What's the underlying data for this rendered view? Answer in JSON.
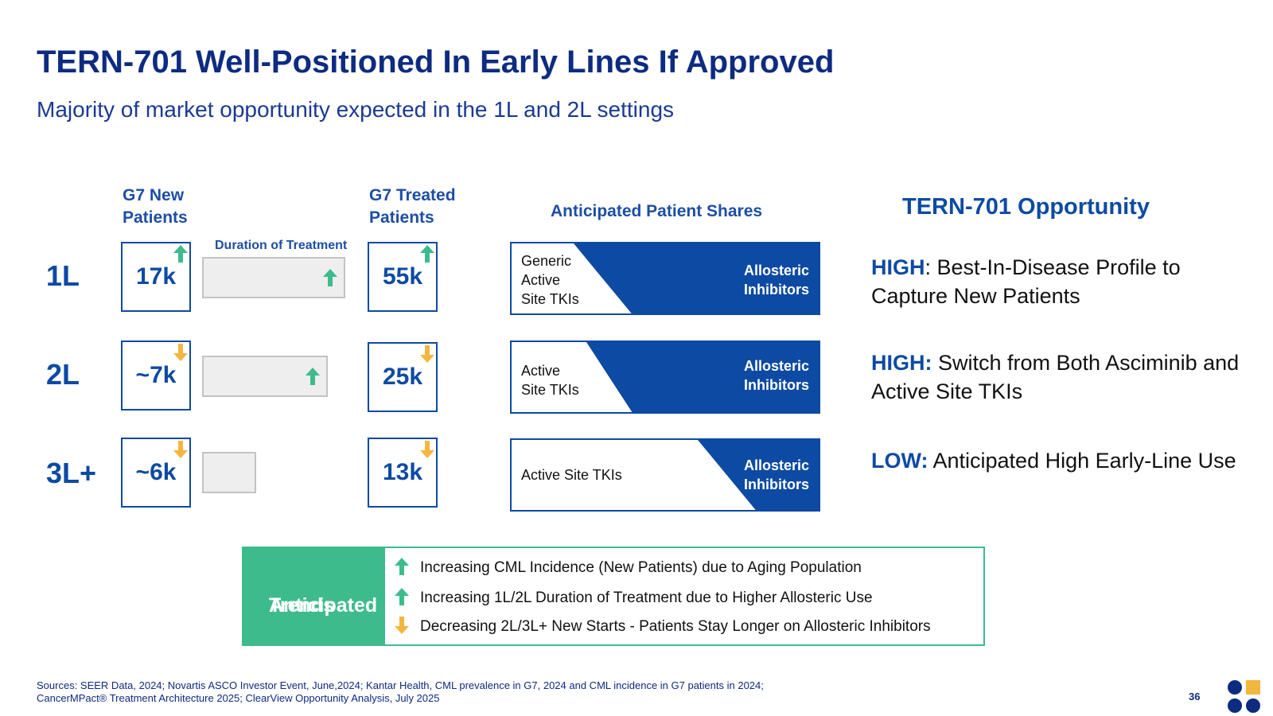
{
  "header": {
    "title": "TERN-701 Well-Positioned In Early Lines If Approved",
    "subtitle": "Majority of market opportunity expected in the 1L and 2L settings"
  },
  "columns": {
    "new_patients": [
      "G7 New",
      "Patients"
    ],
    "duration": "Duration of Treatment",
    "treated_patients": [
      "G7 Treated",
      "Patients"
    ],
    "shares": "Anticipated Patient Shares",
    "opportunity": "TERN-701 Opportunity"
  },
  "rows": [
    {
      "line": "1L",
      "new_patients": "17k",
      "new_trend": "up",
      "duration_trend": "up",
      "duration_relative": 1.0,
      "treated_patients": "55k",
      "treated_trend": "up",
      "generic_label": [
        "Generic",
        "Active",
        "Site TKIs"
      ],
      "allosteric_label": [
        "Allosteric",
        "Inhibitors"
      ],
      "opportunity_level": "HIGH",
      "opportunity_text": ": Best-In-Disease Profile to Capture New Patients"
    },
    {
      "line": "2L",
      "new_patients": "~7k",
      "new_trend": "down",
      "duration_trend": "up",
      "duration_relative": 0.88,
      "treated_patients": "25k",
      "treated_trend": "down",
      "generic_label": [
        "Active",
        "Site TKIs"
      ],
      "allosteric_label": [
        "Allosteric",
        "Inhibitors"
      ],
      "opportunity_level": "HIGH:",
      "opportunity_text": " Switch from Both Asciminib and Active Site TKIs"
    },
    {
      "line": "3L+",
      "new_patients": "~6k",
      "new_trend": "down",
      "duration_trend": "none",
      "duration_relative": 0.38,
      "treated_patients": "13k",
      "treated_trend": "down",
      "generic_label": [
        "Active Site TKIs"
      ],
      "allosteric_label": [
        "Allosteric",
        "Inhibitors"
      ],
      "opportunity_level": "LOW:",
      "opportunity_text": " Anticipated High Early-Line Use"
    }
  ],
  "trends": {
    "label": [
      "Anticipated",
      "Trends"
    ],
    "items": [
      {
        "dir": "up",
        "text": "Increasing CML Incidence (New Patients) due to Aging Population"
      },
      {
        "dir": "up",
        "text": "Increasing 1L/2L Duration of Treatment due to Higher Allosteric Use"
      },
      {
        "dir": "down",
        "text": "Decreasing 2L/3L+ New Starts -  Patients Stay Longer on Allosteric Inhibitors"
      }
    ]
  },
  "footer": {
    "sources": [
      "Sources: SEER Data, 2024; Novartis ASCO Investor Event, June,2024; Kantar Health, CML prevalence in G7, 2024 and CML incidence in G7 patients in 2024;",
      "CancerMPact® Treatment Architecture 2025; ClearView Opportunity Analysis, July 2025"
    ],
    "page_number": "36"
  },
  "colors": {
    "navy": "#0d2b80",
    "blue": "#0d4aa3",
    "up_arrow": "#3dbb8c",
    "down_arrow": "#f3b63f",
    "trend_green": "#3dbb8c",
    "logo_yellow": "#f3b63f"
  }
}
